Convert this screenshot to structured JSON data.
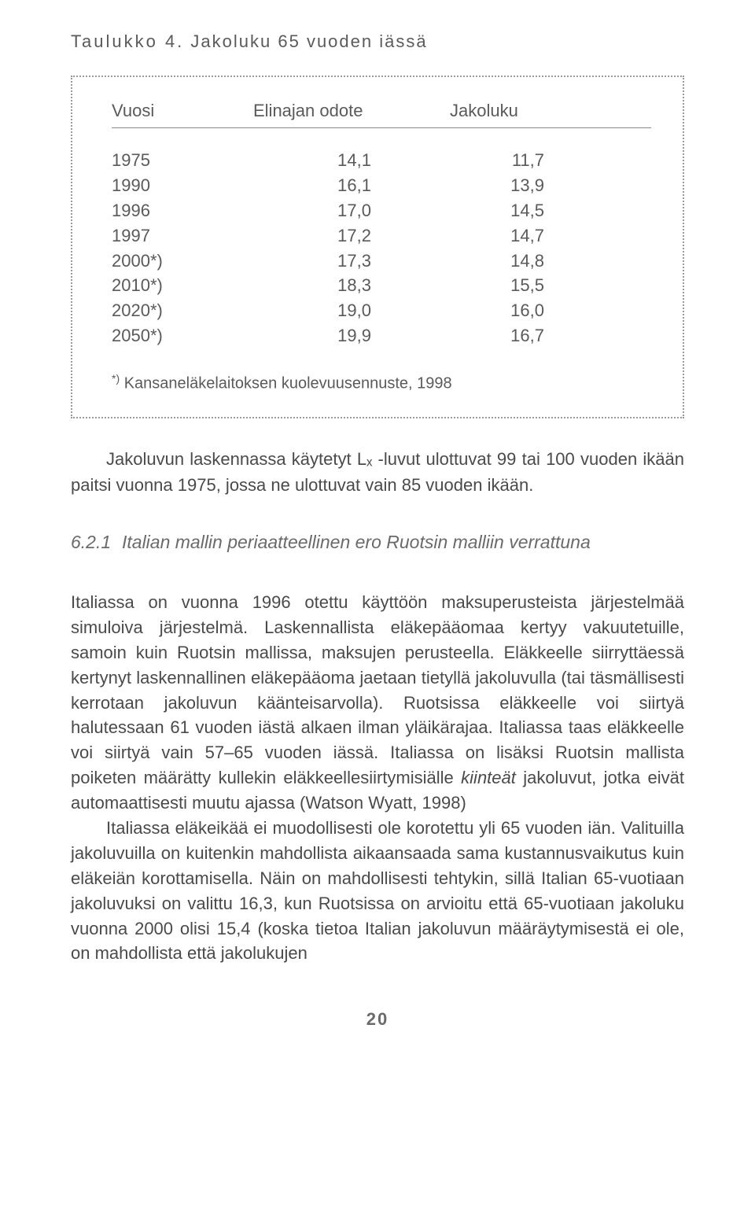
{
  "table_title_label": "Taulukko 4.",
  "table_title_text": "Jakoluku 65 vuoden iässä",
  "table": {
    "columns": [
      "Vuosi",
      "Elinajan odote",
      "Jakoluku"
    ],
    "rows": [
      [
        "1975",
        "14,1",
        "11,7"
      ],
      [
        "1990",
        "16,1",
        "13,9"
      ],
      [
        "1996",
        "17,0",
        "14,5"
      ],
      [
        "1997",
        "17,2",
        "14,7"
      ],
      [
        "2000*)",
        "17,3",
        "14,8"
      ],
      [
        "2010*)",
        "18,3",
        "15,5"
      ],
      [
        "2020*)",
        "19,0",
        "16,0"
      ],
      [
        "2050*)",
        "19,9",
        "16,7"
      ]
    ],
    "footnote_marker": "*)",
    "footnote_text": "Kansaneläkelaitoksen kuolevuusennuste, 1998"
  },
  "para_after_table": "Jakoluvun laskennassa käytetyt Lₓ -luvut ulottuvat 99 tai 100 vuoden ikään paitsi vuonna 1975, jossa ne ulottuvat vain 85 vuoden ikään.",
  "section": {
    "number": "6.2.1",
    "title": "Italian mallin periaatteellinen ero Ruotsin malliin verrattuna"
  },
  "body_p1": "Italiassa on vuonna 1996 otettu käyttöön maksuperusteista järjestelmää simuloiva järjestelmä. Laskennallista eläkepääomaa kertyy vakuutetuille, samoin kuin Ruotsin mallissa, maksujen perusteella. Eläkkeelle siirryttäessä kertynyt laskennallinen eläkepääoma jaetaan tietyllä jakoluvulla (tai täsmällisesti kerrotaan jakoluvun käänteisarvolla). Ruotsissa eläkkeelle voi siirtyä halutessaan 61 vuoden iästä alkaen ilman yläikärajaa. Italiassa taas eläkkeelle voi siirtyä vain 57–65 vuoden iässä. Italiassa on lisäksi Ruotsin mallista poiketen määrätty kullekin eläkkeellesiirtymisiälle ",
  "body_p1_italic": "kiinteät",
  "body_p1_cont": " jakoluvut, jotka eivät automaattisesti muutu ajassa (Watson Wyatt, 1998)",
  "body_p2": "Italiassa eläkeikää ei muodollisesti ole korotettu yli 65 vuoden iän. Valituilla jakoluvuilla on kuitenkin mahdollista aikaansaada sama kustannusvaikutus kuin eläkeiän korottamisella. Näin on mahdollisesti tehtykin, sillä Italian 65-vuotiaan jakoluvuksi on valittu 16,3, kun Ruotsissa on arvioitu että 65-vuotiaan jakoluku vuonna 2000 olisi 15,4 (koska tietoa Italian jakoluvun määräytymisestä ei ole, on mahdollista että jakolukujen",
  "page_number": "20"
}
